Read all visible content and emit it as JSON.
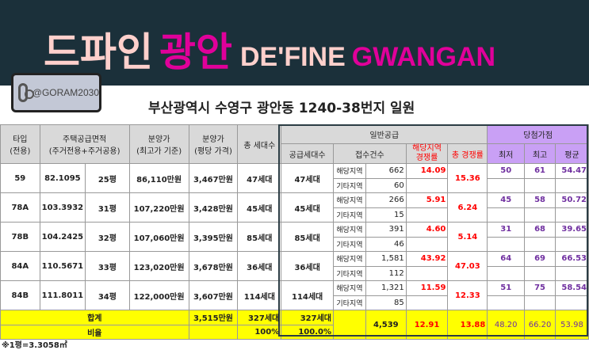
{
  "header": {
    "title_ko_1": "드파인",
    "title_ko_2": "광안",
    "title_en_1": "DE'FINE",
    "title_en_2": "GWANGAN",
    "instagram": "@GORAM2030",
    "address": "부산광역시 수영구 광안동 1240-38번지 일원"
  },
  "colors": {
    "banner": "#1b303a",
    "pink": "#ffd0cc",
    "magenta": "#e0009a",
    "total_row": "#ffff00",
    "score_header": "#c9a0f5"
  },
  "table": {
    "headers": {
      "type": "타입\n(전용)",
      "area": "주택공급면적\n(주거전용+주거공용)",
      "price": "분양가\n(최고가 기준)",
      "per_pyeong": "분양가\n(평당 가격)",
      "households": "총 세대수",
      "general": "일반공급",
      "supply": "공급세대수",
      "applications": "접수건수",
      "local_rate": "해당지역\n경쟁률",
      "total_rate": "총 경쟁률",
      "score": "당첨가점",
      "min": "최저",
      "max": "최고",
      "avg": "평균"
    },
    "region_labels": {
      "local": "해당지역",
      "other": "기타지역"
    },
    "rows": [
      {
        "type": "59",
        "area": "82.1095",
        "pyeong": "25평",
        "price": "86,110만원",
        "per_pyeong": "3,467만원",
        "households": "47세대",
        "supply": "47세대",
        "local_count": "662",
        "other_count": "60",
        "local_rate": "14.09",
        "total_rate": "15.36",
        "min": "50",
        "max": "61",
        "avg": "54.47"
      },
      {
        "type": "78A",
        "area": "103.3932",
        "pyeong": "31평",
        "price": "107,220만원",
        "per_pyeong": "3,428만원",
        "households": "45세대",
        "supply": "45세대",
        "local_count": "266",
        "other_count": "15",
        "local_rate": "5.91",
        "total_rate": "6.24",
        "min": "45",
        "max": "58",
        "avg": "50.72"
      },
      {
        "type": "78B",
        "area": "104.2425",
        "pyeong": "32평",
        "price": "107,060만원",
        "per_pyeong": "3,395만원",
        "households": "85세대",
        "supply": "85세대",
        "local_count": "391",
        "other_count": "46",
        "local_rate": "4.60",
        "total_rate": "5.14",
        "min": "31",
        "max": "68",
        "avg": "39.65"
      },
      {
        "type": "84A",
        "area": "110.5671",
        "pyeong": "33평",
        "price": "123,020만원",
        "per_pyeong": "3,678만원",
        "households": "36세대",
        "supply": "36세대",
        "local_count": "1,581",
        "other_count": "112",
        "local_rate": "43.92",
        "total_rate": "47.03",
        "min": "64",
        "max": "69",
        "avg": "66.53"
      },
      {
        "type": "84B",
        "area": "111.8011",
        "pyeong": "34평",
        "price": "122,000만원",
        "per_pyeong": "3,607만원",
        "households": "114세대",
        "supply": "114세대",
        "local_count": "1,321",
        "other_count": "85",
        "local_rate": "11.59",
        "total_rate": "12.33",
        "min": "51",
        "max": "75",
        "avg": "58.54"
      }
    ],
    "total": {
      "label": "합계",
      "per_pyeong": "3,515만원",
      "households": "327세대",
      "supply": "327세대",
      "count": "4,539",
      "local_rate": "12.91",
      "total_rate": "13.88",
      "min": "48.20",
      "max": "66.20",
      "avg": "53.98"
    },
    "ratio": {
      "label": "비율",
      "households": "100%",
      "supply": "100.0%"
    }
  },
  "footnote": "※1평=3.3058㎡"
}
